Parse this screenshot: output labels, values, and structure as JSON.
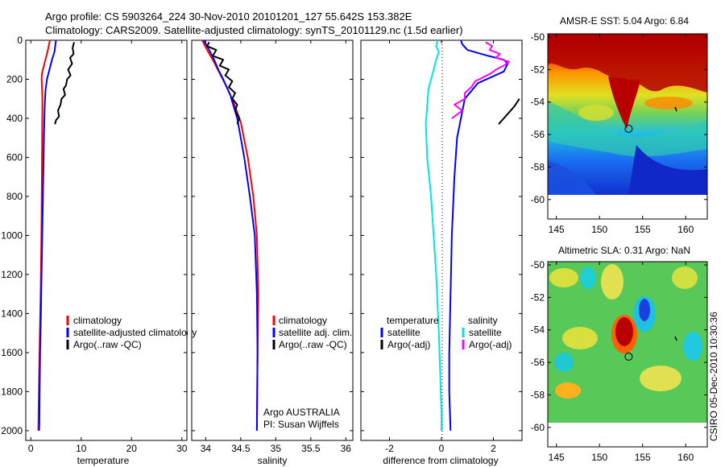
{
  "header": {
    "line1": "Argo profile: CS 5903264_224 30-Nov-2010 20101201_127 55.642S 153.382E",
    "line2": "Climatology: CARS2009. Satellite-adjusted climatology: synTS_20101129.nc (1.5d earlier)"
  },
  "credit": "CSIRO 05-Dec-2010 10:30:36",
  "colors": {
    "red": "#ff0000",
    "blue": "#0000ff",
    "black": "#000000",
    "cyan": "#00e5e5",
    "magenta": "#ff00ff"
  },
  "chart_data": [
    {
      "type": "line",
      "xlabel": "temperature",
      "xlim": [
        -1,
        31
      ],
      "ylim": [
        0,
        2050
      ],
      "y_reversed": true,
      "xticks": [
        0,
        10,
        20,
        30
      ],
      "yticks": [
        0,
        200,
        400,
        600,
        800,
        1000,
        1200,
        1400,
        1600,
        1800,
        2000
      ],
      "legend": [
        "climatology",
        "satellite-adjusted climatology",
        "Argo(..raw -QC)"
      ],
      "series": [
        {
          "name": "climatology",
          "color": "red",
          "x": [
            3.8,
            3.3,
            2.7,
            2.2,
            2.15,
            2.3,
            2.25,
            2.2,
            2.1,
            1.95,
            1.8,
            1.65,
            1.55,
            1.5
          ],
          "y": [
            0,
            60,
            120,
            170,
            200,
            300,
            500,
            700,
            1000,
            1300,
            1500,
            1700,
            1900,
            2000
          ]
        },
        {
          "name": "satellite-adjusted climatology",
          "color": "blue",
          "x": [
            5.0,
            4.7,
            4.2,
            3.7,
            3.2,
            2.9,
            2.75,
            2.6,
            2.4,
            2.2,
            2.0,
            1.85,
            1.75,
            1.7,
            1.65
          ],
          "y": [
            0,
            60,
            100,
            150,
            200,
            260,
            350,
            500,
            800,
            1100,
            1400,
            1600,
            1800,
            1950,
            2000
          ]
        },
        {
          "name": "Argo(..raw -QC)",
          "color": "black",
          "x": [
            8.6,
            8.3,
            8.5,
            7.8,
            8.2,
            7.4,
            7.9,
            7.2,
            7.0,
            6.5,
            6.8,
            6.1,
            5.9,
            5.4,
            5.6,
            5.0,
            4.8
          ],
          "y": [
            10,
            40,
            70,
            90,
            120,
            150,
            180,
            200,
            230,
            250,
            280,
            300,
            330,
            360,
            390,
            410,
            430
          ]
        }
      ]
    },
    {
      "type": "line",
      "xlabel": "salinity",
      "xlim": [
        33.8,
        36.1
      ],
      "ylim": [
        0,
        2050
      ],
      "y_reversed": true,
      "xticks": [
        34,
        34.5,
        35,
        35.5,
        36
      ],
      "yticks": [
        0,
        200,
        400,
        600,
        800,
        1000,
        1200,
        1400,
        1600,
        1800,
        2000
      ],
      "legend": [
        "climatology",
        "satellite adj. clim.",
        "Argo(..raw -QC)"
      ],
      "annotations": [
        "Argo AUSTRALIA",
        "PI: Susan Wijffels"
      ],
      "series": [
        {
          "name": "climatology",
          "color": "red",
          "x": [
            33.95,
            34.02,
            34.1,
            34.2,
            34.3,
            34.4,
            34.5,
            34.6,
            34.68,
            34.73,
            34.75,
            34.74,
            34.73
          ],
          "y": [
            0,
            50,
            100,
            170,
            240,
            320,
            420,
            600,
            800,
            1000,
            1300,
            1600,
            2000
          ]
        },
        {
          "name": "satellite adj. clim.",
          "color": "blue",
          "x": [
            33.97,
            34.05,
            34.12,
            34.18,
            34.25,
            34.35,
            34.45,
            34.55,
            34.63,
            34.7,
            34.73,
            34.74,
            34.73
          ],
          "y": [
            0,
            50,
            100,
            150,
            200,
            280,
            400,
            600,
            800,
            1000,
            1300,
            1600,
            2000
          ]
        },
        {
          "name": "Argo(..raw -QC)",
          "color": "black",
          "x": [
            34.05,
            34.02,
            34.15,
            34.1,
            34.25,
            34.2,
            34.33,
            34.28,
            34.38,
            34.33,
            34.42,
            34.38,
            34.45,
            34.42,
            34.48,
            34.45
          ],
          "y": [
            10,
            30,
            50,
            80,
            100,
            130,
            150,
            180,
            210,
            240,
            270,
            300,
            330,
            360,
            400,
            430
          ]
        }
      ]
    },
    {
      "type": "line",
      "xlabel": "difference from climatology",
      "xlim": [
        -3.1,
        3.1
      ],
      "ylim": [
        0,
        2050
      ],
      "y_reversed": true,
      "xticks": [
        -2,
        0,
        2
      ],
      "yticks": [
        0,
        200,
        400,
        600,
        800,
        1000,
        1200,
        1400,
        1600,
        1800,
        2000
      ],
      "legend": [
        "temperature",
        "satellite",
        "Argo(-adj)",
        "salinity",
        "satellite",
        "Argo(-adj)"
      ],
      "series": [
        {
          "name": "temperature satellite",
          "color": "blue",
          "x": [
            0.75,
            0.8,
            1.0,
            1.8,
            2.4,
            2.55,
            2.4,
            1.4,
            0.9,
            0.75,
            0.6,
            0.5,
            0.4,
            0.35,
            0.3,
            0.3,
            0.35
          ],
          "y": [
            0,
            20,
            50,
            80,
            100,
            120,
            160,
            220,
            300,
            400,
            500,
            700,
            1000,
            1300,
            1600,
            1800,
            2000
          ]
        },
        {
          "name": "temperature Argo(-adj)",
          "color": "black",
          "x": [
            3.0,
            2.8,
            2.6,
            2.4,
            2.2
          ],
          "y": [
            300,
            340,
            370,
            400,
            430
          ]
        },
        {
          "name": "salinity satellite",
          "color": "cyan",
          "x": [
            -0.15,
            -0.2,
            -0.1,
            -0.2,
            -0.3,
            -0.5,
            -0.6,
            -0.55,
            -0.4,
            -0.3,
            -0.2,
            -0.1,
            -0.05,
            0.0,
            0.0
          ],
          "y": [
            0,
            30,
            60,
            100,
            150,
            250,
            430,
            600,
            800,
            1000,
            1200,
            1500,
            1700,
            1900,
            2000
          ]
        },
        {
          "name": "salinity Argo(-adj)",
          "color": "magenta",
          "x": [
            1.7,
            1.95,
            1.85,
            2.25,
            2.1,
            2.6,
            2.4,
            2.1,
            1.9,
            1.6,
            1.3,
            1.15,
            0.9,
            0.9,
            0.5,
            0.8,
            0.4
          ],
          "y": [
            10,
            30,
            50,
            70,
            90,
            110,
            130,
            150,
            170,
            190,
            210,
            240,
            270,
            300,
            330,
            360,
            400
          ]
        }
      ]
    },
    {
      "type": "heatmap",
      "title": "AMSR-E SST: 5.04 Argo: 6.84",
      "xlim": [
        144,
        162.5
      ],
      "ylim": [
        -61.2,
        -49.8
      ],
      "xticks": [
        145,
        150,
        155,
        160
      ],
      "yticks": [
        -50,
        -52,
        -54,
        -56,
        -58,
        -60
      ],
      "marker": {
        "lon": 153.382,
        "lat": -55.642
      }
    },
    {
      "type": "heatmap",
      "title": "Altimetric SLA: 0.31 Argo: NaN",
      "xlim": [
        144,
        162.5
      ],
      "ylim": [
        -61.2,
        -49.8
      ],
      "xticks": [
        145,
        150,
        155,
        160
      ],
      "yticks": [
        -50,
        -52,
        -54,
        -56,
        -58,
        -60
      ],
      "marker": {
        "lon": 153.382,
        "lat": -55.642
      }
    }
  ]
}
